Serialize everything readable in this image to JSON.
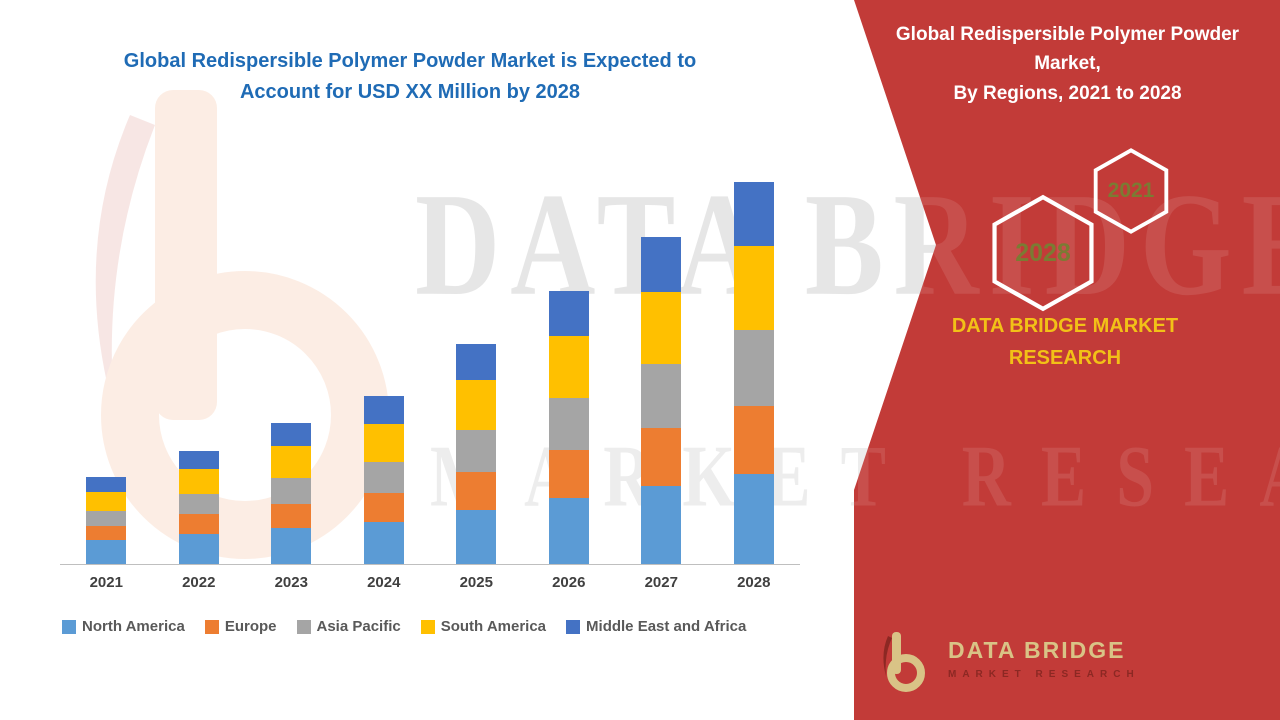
{
  "header": {
    "title_line1": "Global Redispersible Polymer Powder Market is Expected to",
    "title_line2": "Account for USD XX Million by 2028"
  },
  "chart_data": {
    "type": "bar",
    "stacked": true,
    "title": "Global Redispersible Polymer Powder Market is Expected to Account for USD XX Million by 2028",
    "categories": [
      "2021",
      "2022",
      "2023",
      "2024",
      "2025",
      "2026",
      "2027",
      "2028"
    ],
    "series": [
      {
        "name": "North America",
        "color": "#5B9BD5",
        "values": [
          24,
          30,
          36,
          42,
          54,
          66,
          78,
          90
        ]
      },
      {
        "name": "Europe",
        "color": "#ED7D31",
        "values": [
          14,
          20,
          24,
          29,
          38,
          48,
          58,
          68
        ]
      },
      {
        "name": "Asia Pacific",
        "color": "#A5A5A5",
        "values": [
          15,
          20,
          26,
          31,
          42,
          52,
          64,
          76
        ]
      },
      {
        "name": "South America",
        "color": "#FFC000",
        "values": [
          19,
          25,
          32,
          38,
          50,
          62,
          72,
          84
        ]
      },
      {
        "name": "Middle East and Africa",
        "color": "#4472C4",
        "values": [
          15,
          18,
          23,
          28,
          36,
          45,
          55,
          64
        ]
      }
    ],
    "xlabel": "",
    "ylabel": "",
    "value_axis_visible": false,
    "gridlines": false,
    "legend_position": "bottom"
  },
  "watermark": {
    "line1": "DATA BRIDGE",
    "line2": "MARKET RESEARCH"
  },
  "sidebar": {
    "title": "Global Redispersible Polymer Powder Market,",
    "subtitle": "By Regions, 2021 to 2028",
    "hexagons": [
      {
        "year": "2028"
      },
      {
        "year": "2021"
      }
    ],
    "brand": "DATA BRIDGE MARKET RESEARCH",
    "logo": {
      "name": "DATA BRIDGE",
      "tagline": "MARKET RESEARCH"
    }
  },
  "colors": {
    "panel_red": "#C23B38",
    "title_blue": "#1F6BB5",
    "axis_label": "#404040",
    "legend_text": "#595959",
    "brand_gold": "#F2C117",
    "hexagon_text": "#7B7B33"
  }
}
